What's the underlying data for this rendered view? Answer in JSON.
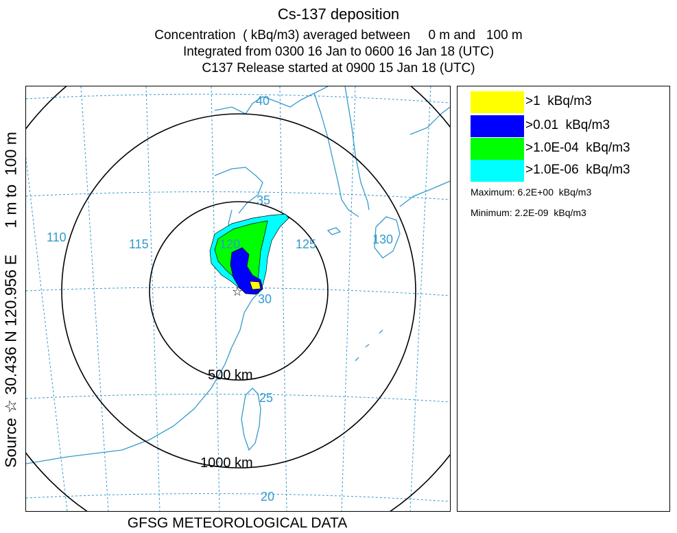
{
  "header": {
    "title": "Cs-137 deposition",
    "line2": "Concentration  ( kBq/m3) averaged between     0 m and   100 m",
    "line3": "Integrated from 0300 16 Jan to 0600 16 Jan 18 (UTC)",
    "line4": "C137 Release started at 0900 15 Jan 18 (UTC)"
  },
  "side_label": "Source ☆ 30.436 N 120.956 E      1 m to  100 m",
  "footer": "GFSG METEOROLOGICAL DATA",
  "map": {
    "source_marker": "☆",
    "longitude_labels": [
      "110",
      "115",
      "120",
      "125",
      "130"
    ],
    "latitude_labels": [
      "40",
      "35",
      "30",
      "25",
      "20"
    ],
    "range_rings": [
      "500 km",
      "1000 km"
    ],
    "colors": {
      "grid": "#3399cc",
      "coast": "#3399cc",
      "ring": "#000000",
      "level_1": "#ffff00",
      "level_2": "#0000ff",
      "level_3": "#00ff00",
      "level_4": "#00ffff"
    }
  },
  "legend": {
    "items": [
      {
        "label": ">1  kBq/m3",
        "color": "#ffff00"
      },
      {
        "label": ">0.01  kBq/m3",
        "color": "#0000ff"
      },
      {
        "label": ">1.0E-04  kBq/m3",
        "color": "#00ff00"
      },
      {
        "label": ">1.0E-06  kBq/m3",
        "color": "#00ffff"
      }
    ],
    "maximum": "Maximum: 6.2E+00  kBq/m3",
    "minimum": "Minimum: 2.2E-09  kBq/m3"
  }
}
